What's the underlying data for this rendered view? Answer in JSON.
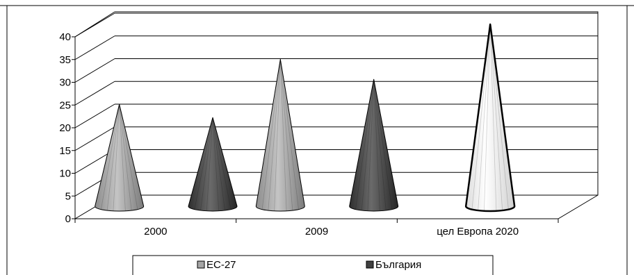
{
  "chart_data": {
    "type": "bar",
    "style": "3d-cone",
    "title": "",
    "xlabel": "",
    "ylabel": "",
    "categories": [
      "2000",
      "2009",
      "цел Европа 2020"
    ],
    "series": [
      {
        "name": "ЕС-27",
        "values": [
          22.4,
          32.3,
          null
        ],
        "color": "#a6a6a6"
      },
      {
        "name": "България",
        "values": [
          19.5,
          27.9,
          null
        ],
        "color": "#404040"
      }
    ],
    "target": {
      "category": "цел Европа 2020",
      "value": 40,
      "color": "#f2f2f2"
    },
    "ylim": [
      0,
      40
    ],
    "yticks": [
      0,
      5,
      10,
      15,
      20,
      25,
      30,
      35,
      40
    ],
    "grid": true,
    "legend_position": "bottom"
  }
}
